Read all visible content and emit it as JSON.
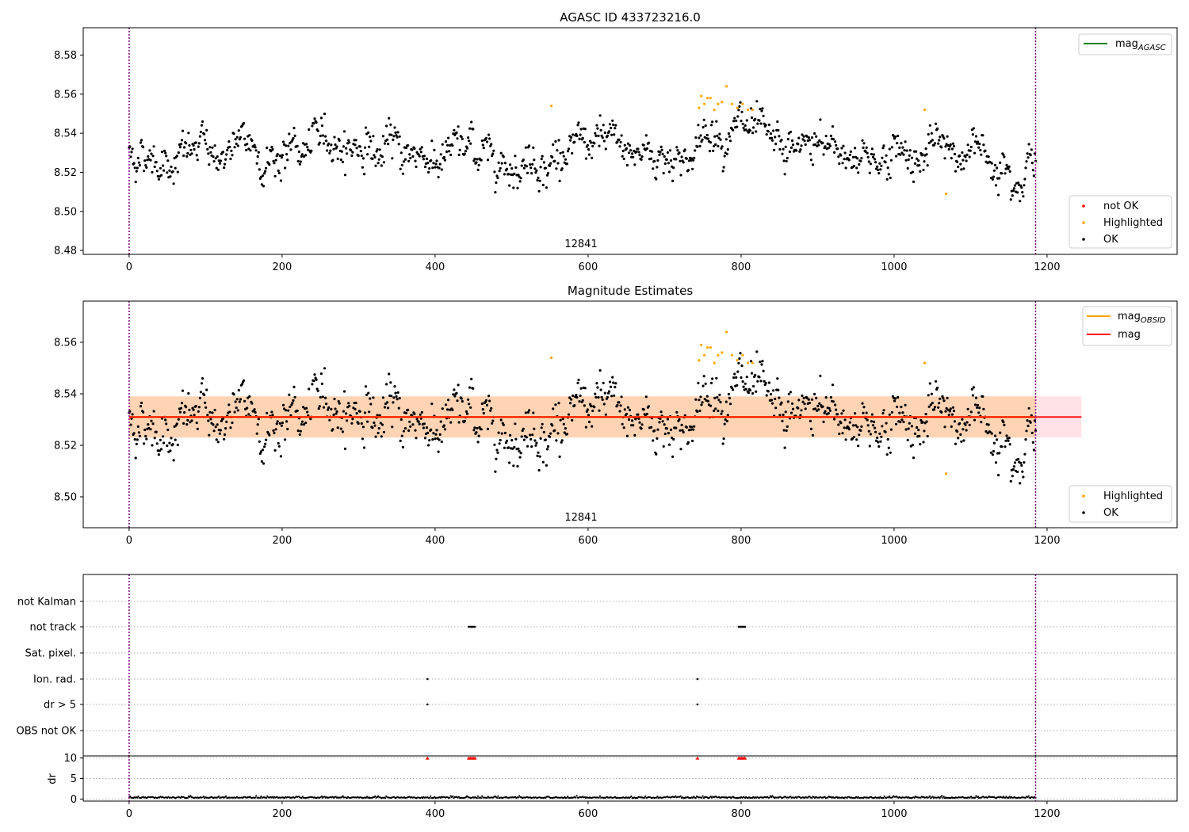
{
  "chart_data": [
    {
      "type": "scatter",
      "title": "AGASC ID 433723216.0",
      "annotation": "12841",
      "xlim": [
        -60,
        1370
      ],
      "ylim": [
        8.478,
        8.594
      ],
      "xticks": [
        0,
        200,
        400,
        600,
        800,
        1000,
        1200
      ],
      "yticks": [
        8.48,
        8.5,
        8.52,
        8.54,
        8.56,
        8.58
      ],
      "ytick_labels": [
        "8.48",
        "8.50",
        "8.52",
        "8.54",
        "8.56",
        "8.58"
      ],
      "xtick_labels": [
        "0",
        "200",
        "400",
        "600",
        "800",
        "1000",
        "1200"
      ],
      "vlines": [
        0,
        1185
      ],
      "legend_lines": [
        {
          "label": "mag",
          "sub": "AGASC",
          "color": "#008000"
        }
      ],
      "legend_points": [
        {
          "label": "not OK",
          "color": "#ff0000"
        },
        {
          "label": "Highlighted",
          "color": "#ffa500"
        },
        {
          "label": "OK",
          "color": "#000000"
        }
      ],
      "series": [
        {
          "name": "OK",
          "color": "#000000",
          "x_range": [
            0,
            1185
          ],
          "count": 1100,
          "level": 8.53,
          "spread": 0.007
        },
        {
          "name": "Highlighted",
          "color": "#ffa500",
          "x": [
            552,
            745,
            748,
            752,
            756,
            760,
            765,
            770,
            775,
            781,
            788,
            795,
            802,
            809,
            815,
            1040,
            1068
          ],
          "y": [
            8.554,
            8.553,
            8.559,
            8.555,
            8.558,
            8.558,
            8.552,
            8.555,
            8.556,
            8.564,
            8.555,
            8.553,
            8.555,
            8.552,
            8.552,
            8.552,
            8.509
          ]
        }
      ]
    },
    {
      "type": "scatter",
      "title": "Magnitude Estimates",
      "annotation": "12841",
      "xlim": [
        -60,
        1370
      ],
      "ylim": [
        8.488,
        8.576
      ],
      "xticks": [
        0,
        200,
        400,
        600,
        800,
        1000,
        1200
      ],
      "yticks": [
        8.5,
        8.52,
        8.54,
        8.56
      ],
      "ytick_labels": [
        "8.50",
        "8.52",
        "8.54",
        "8.56"
      ],
      "xtick_labels": [
        "0",
        "200",
        "400",
        "600",
        "800",
        "1000",
        "1200"
      ],
      "vlines": [
        0,
        1185
      ],
      "mag_line": 8.531,
      "band_obsid": [
        8.523,
        8.539,
        0,
        1185
      ],
      "band_mag": [
        8.523,
        8.539,
        0,
        1245
      ],
      "legend_lines": [
        {
          "label": "mag",
          "sub": "OBSID",
          "color": "#ffa500"
        },
        {
          "label": "mag",
          "sub": "",
          "color": "#ff0000"
        }
      ],
      "legend_points": [
        {
          "label": "Highlighted",
          "color": "#ffa500"
        },
        {
          "label": "OK",
          "color": "#000000"
        }
      ]
    },
    {
      "type": "scatter",
      "title": "",
      "categories": [
        "not Kalman",
        "not track",
        "Sat. pixel.",
        "Ion. rad.",
        "dr > 5",
        "OBS not OK"
      ],
      "xlim": [
        -60,
        1370
      ],
      "xticks": [
        0,
        200,
        400,
        600,
        800,
        1000,
        1200
      ],
      "xtick_labels": [
        "0",
        "200",
        "400",
        "600",
        "800",
        "1000",
        "1200"
      ],
      "vlines": [
        0,
        1185
      ],
      "flags": {
        "not track": [
          [
            444,
            452
          ],
          [
            797,
            805
          ]
        ],
        "Ion. rad.": [
          [
            390,
            390
          ],
          [
            743,
            743
          ]
        ],
        "dr > 5": [
          [
            390,
            390
          ],
          [
            743,
            743
          ]
        ]
      }
    },
    {
      "type": "scatter",
      "title": "",
      "ylabel": "dr",
      "ylim": [
        -0.5,
        10.5
      ],
      "yticks": [
        0,
        5,
        10
      ],
      "ytick_labels": [
        "0",
        "5",
        "10"
      ],
      "xlim": [
        -60,
        1370
      ],
      "xticks": [
        0,
        200,
        400,
        600,
        800,
        1000,
        1200
      ],
      "xtick_labels": [
        "0",
        "200",
        "400",
        "600",
        "800",
        "1000",
        "1200"
      ],
      "vlines": [
        0,
        1185
      ],
      "clipped_red_x": [
        390,
        444,
        446,
        448,
        450,
        452,
        743,
        797,
        799,
        801,
        803,
        805
      ],
      "clipped_value": 10
    }
  ]
}
